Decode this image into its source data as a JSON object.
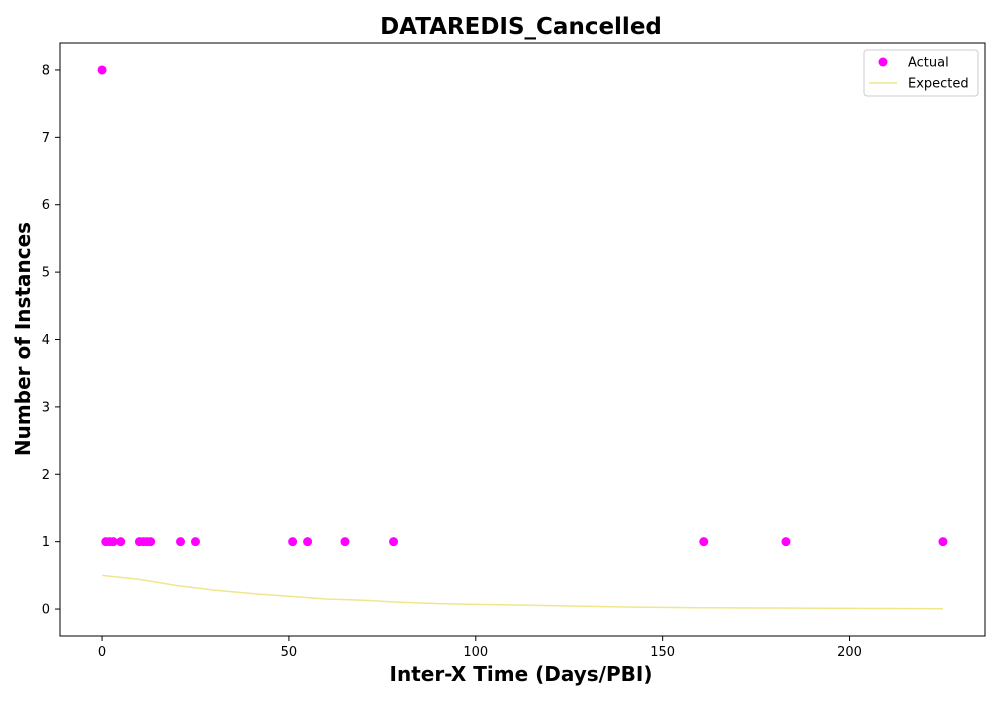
{
  "chart_data": {
    "type": "scatter",
    "title": "DATAREDIS_Cancelled",
    "xlabel": "Inter-X Time (Days/PBI)",
    "ylabel": "Number of Instances",
    "xlim": [
      -11.25,
      236.25
    ],
    "ylim": [
      -0.4,
      8.4
    ],
    "xticks": [
      0,
      50,
      100,
      150,
      200
    ],
    "yticks": [
      0,
      1,
      2,
      3,
      4,
      5,
      6,
      7,
      8
    ],
    "grid": false,
    "legend": "top-right",
    "series": [
      {
        "name": "Actual",
        "kind": "scatter",
        "color": "#ff00ff",
        "points": [
          [
            0,
            8
          ],
          [
            1,
            1
          ],
          [
            2,
            1
          ],
          [
            3,
            1
          ],
          [
            5,
            1
          ],
          [
            10,
            1
          ],
          [
            11,
            1
          ],
          [
            12,
            1
          ],
          [
            13,
            1
          ],
          [
            21,
            1
          ],
          [
            25,
            1
          ],
          [
            51,
            1
          ],
          [
            55,
            1
          ],
          [
            65,
            1
          ],
          [
            78,
            1
          ],
          [
            161,
            1
          ],
          [
            183,
            1
          ],
          [
            225,
            1
          ]
        ]
      },
      {
        "name": "Expected",
        "kind": "line",
        "color": "#f0e68c",
        "points": [
          [
            0,
            0.5
          ],
          [
            10,
            0.44
          ],
          [
            20,
            0.35
          ],
          [
            30,
            0.28
          ],
          [
            40,
            0.23
          ],
          [
            50,
            0.19
          ],
          [
            60,
            0.15
          ],
          [
            70,
            0.13
          ],
          [
            80,
            0.1
          ],
          [
            90,
            0.08
          ],
          [
            100,
            0.07
          ],
          [
            120,
            0.05
          ],
          [
            140,
            0.03
          ],
          [
            160,
            0.02
          ],
          [
            180,
            0.015
          ],
          [
            200,
            0.01
          ],
          [
            225,
            0.005
          ]
        ]
      }
    ]
  }
}
